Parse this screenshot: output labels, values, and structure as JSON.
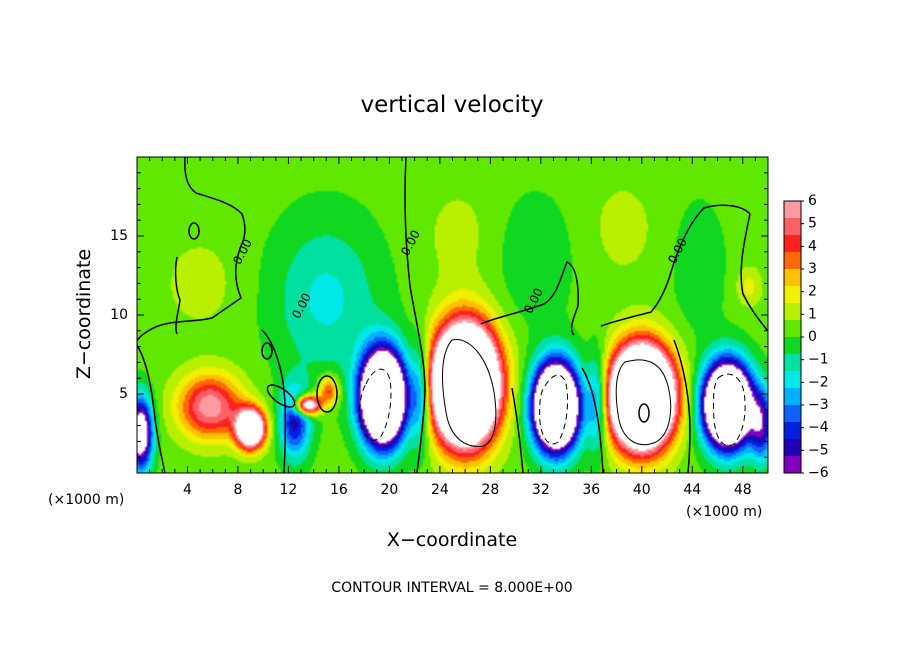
{
  "chart_data": {
    "type": "heatmap",
    "title": "vertical velocity",
    "xlabel": "X−coordinate",
    "ylabel": "Z−coordinate",
    "x_unit_left": "(×1000 m)",
    "x_unit_right": "(×1000 m)",
    "xlim": [
      0,
      50
    ],
    "ylim": [
      0,
      20
    ],
    "x_ticks": [
      4,
      8,
      12,
      16,
      20,
      24,
      28,
      32,
      36,
      40,
      44,
      48
    ],
    "y_ticks": [
      5,
      10,
      15
    ],
    "colorbar": {
      "ticks": [
        6,
        5,
        4,
        3,
        2,
        1,
        0,
        -1,
        -2,
        -3,
        -4,
        -5,
        -6
      ],
      "colors": [
        "#ff9aa0",
        "#ff6068",
        "#ff2020",
        "#ff6a00",
        "#ffc000",
        "#f0f000",
        "#b8f000",
        "#60e800",
        "#10d820",
        "#00e0a0",
        "#00e8e8",
        "#00b0ff",
        "#1060ff",
        "#0020e0",
        "#2000b0",
        "#8000c0"
      ]
    },
    "contour_label": "0.00",
    "contour_interval_text": "CONTOUR INTERVAL = 8.000E+00",
    "field": {
      "background": 0.3,
      "cells": [
        {
          "x": 26.0,
          "z": 5.6,
          "sx": 2.4,
          "sz": 3.4,
          "amp": 22
        },
        {
          "x": 40.0,
          "z": 4.8,
          "sx": 2.3,
          "sz": 2.9,
          "amp": 22
        },
        {
          "x": 5.8,
          "z": 4.2,
          "sx": 2.5,
          "sz": 2.0,
          "amp": 5.6
        },
        {
          "x": 9.0,
          "z": 2.8,
          "sx": 1.1,
          "sz": 1.2,
          "amp": 12
        },
        {
          "x": 13.5,
          "z": 4.3,
          "sx": 1.0,
          "sz": 0.6,
          "amp": 9
        },
        {
          "x": 15.2,
          "z": 5.2,
          "sx": 0.8,
          "sz": 0.9,
          "amp": 4
        },
        {
          "x": 19.5,
          "z": 4.8,
          "sx": 1.7,
          "sz": 2.8,
          "amp": -18
        },
        {
          "x": 33.2,
          "z": 4.2,
          "sx": 1.7,
          "sz": 2.6,
          "amp": -18
        },
        {
          "x": 46.8,
          "z": 4.3,
          "sx": 1.8,
          "sz": 2.5,
          "amp": -18
        },
        {
          "x": 0.3,
          "z": 2.5,
          "sx": 0.9,
          "sz": 2.2,
          "amp": -9
        },
        {
          "x": 12.5,
          "z": 3.2,
          "sx": 1.2,
          "sz": 2.2,
          "amp": -5
        },
        {
          "x": 22.5,
          "z": 5.0,
          "sx": 0.8,
          "sz": 3.2,
          "amp": -4
        },
        {
          "x": 36.5,
          "z": 4.5,
          "sx": 0.8,
          "sz": 3.0,
          "amp": -4
        },
        {
          "x": 49.5,
          "z": 3.0,
          "sx": 0.9,
          "sz": 2.2,
          "amp": -5
        },
        {
          "x": 15.0,
          "z": 11.0,
          "sx": 4.2,
          "sz": 5.0,
          "amp": -2.0
        },
        {
          "x": 31.5,
          "z": 13.5,
          "sx": 3.0,
          "sz": 4.0,
          "amp": -1.0
        },
        {
          "x": 44.5,
          "z": 13.0,
          "sx": 2.0,
          "sz": 4.0,
          "amp": -1.0
        },
        {
          "x": 25.5,
          "z": 15.0,
          "sx": 3.0,
          "sz": 3.5,
          "amp": 0.7
        },
        {
          "x": 38.5,
          "z": 15.5,
          "sx": 3.0,
          "sz": 3.5,
          "amp": 0.7
        },
        {
          "x": 5.0,
          "z": 12.0,
          "sx": 3.0,
          "sz": 3.0,
          "amp": 0.8
        },
        {
          "x": 48.5,
          "z": 11.8,
          "sx": 1.0,
          "sz": 1.2,
          "amp": 1.5
        }
      ]
    }
  }
}
